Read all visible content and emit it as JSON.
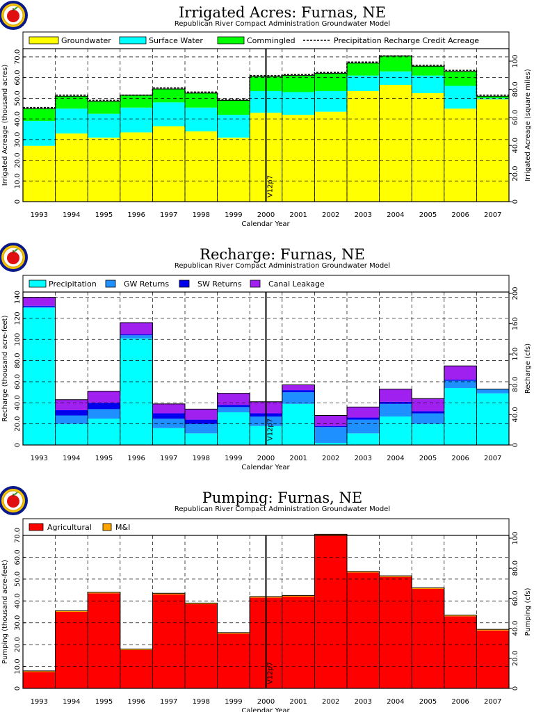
{
  "chart_data": [
    {
      "type": "bar",
      "stacked": true,
      "title": "Irrigated Acres: Furnas, NE",
      "subtitle": "Republican River Compact Administration Groundwater Model",
      "xlabel": "Calendar Year",
      "ylabel": "Irrigated Acreage (thousand acres)",
      "ylabel_right": "Irrigated Acreage (square miles)",
      "categories": [
        "1993",
        "1994",
        "1995",
        "1996",
        "1997",
        "1998",
        "1999",
        "2000",
        "2001",
        "2002",
        "2003",
        "2004",
        "2005",
        "2006",
        "2007"
      ],
      "ylim": [
        0,
        74
      ],
      "yticks": [
        "0",
        "10.0",
        "20.0",
        "30.0",
        "40.0",
        "50.0",
        "60.0",
        "70.0"
      ],
      "yticks_right": [
        "0",
        "20.0",
        "40.0",
        "60.0",
        "80.0",
        "100"
      ],
      "series": [
        {
          "name": "Groundwater",
          "color": "#ffff00",
          "values": [
            27,
            33,
            31,
            33.5,
            36.5,
            34,
            31,
            43,
            42,
            43.5,
            53.5,
            56.5,
            52.5,
            45,
            49.5
          ]
        },
        {
          "name": "Surface Water",
          "color": "#00ffff",
          "values": [
            12,
            12,
            11.5,
            12,
            11.5,
            11.5,
            11,
            10.5,
            11,
            10,
            7.5,
            6.5,
            8.5,
            11,
            0.5
          ]
        },
        {
          "name": "Commingled",
          "color": "#00ff00",
          "values": [
            6,
            6,
            6,
            6,
            6.5,
            7,
            7,
            7,
            8,
            8.5,
            6,
            7.5,
            4.5,
            7,
            1
          ]
        }
      ],
      "line_series": {
        "name": "Precipitation Recharge Credit Acreage",
        "values": [
          45.5,
          51.5,
          49,
          51.5,
          55,
          53,
          49.5,
          61,
          61.5,
          62.5,
          67.5,
          70.5,
          66,
          63.5,
          51.5
        ]
      },
      "annotation": "V12p7",
      "grid": true,
      "legend": "top"
    },
    {
      "type": "bar",
      "stacked": true,
      "title": "Recharge: Furnas, NE",
      "subtitle": "Republican River Compact Administration Groundwater Model",
      "xlabel": "Calendar Year",
      "ylabel": "Recharge (thousand acre-feet)",
      "ylabel_right": "Recharge (cfs)",
      "categories": [
        "1993",
        "1994",
        "1995",
        "1996",
        "1997",
        "1998",
        "1999",
        "2000",
        "2001",
        "2002",
        "2003",
        "2004",
        "2005",
        "2006",
        "2007"
      ],
      "ylim": [
        0,
        145
      ],
      "yticks": [
        "0",
        "20.0",
        "40.0",
        "60.0",
        "80.0",
        "100",
        "120",
        "140"
      ],
      "yticks_right": [
        "0",
        "40.0",
        "80.0",
        "120",
        "160",
        "200"
      ],
      "series": [
        {
          "name": "Precipitation",
          "color": "#00ffff",
          "values": [
            130,
            20,
            25,
            101,
            16,
            11,
            31,
            18,
            39,
            2,
            11,
            27,
            20,
            54,
            49
          ]
        },
        {
          "name": "GW Returns",
          "color": "#1e90ff",
          "values": [
            1,
            8,
            9,
            3,
            9,
            9,
            5,
            9,
            11,
            15,
            13,
            12,
            10,
            7,
            4
          ]
        },
        {
          "name": "SW Returns",
          "color": "#0000ee",
          "values": [
            1,
            5,
            6,
            1,
            5,
            4,
            2,
            3,
            2,
            1,
            2,
            2,
            2,
            1,
            0
          ]
        },
        {
          "name": "Canal Leakage",
          "color": "#a020f0",
          "values": [
            8,
            10,
            11,
            11,
            9,
            10,
            11,
            11,
            5,
            10,
            10,
            12,
            12,
            13,
            0
          ]
        }
      ],
      "annotation": "V12p7",
      "grid": true,
      "legend": "top"
    },
    {
      "type": "bar",
      "stacked": true,
      "title": "Pumping: Furnas, NE",
      "subtitle": "Republican River Compact Administration Groundwater Model",
      "xlabel": "Calendar Year",
      "ylabel": "Pumping (thousand acre-feet)",
      "ylabel_right": "Pumping (cfs)",
      "categories": [
        "1993",
        "1994",
        "1995",
        "1996",
        "1997",
        "1998",
        "1999",
        "2000",
        "2001",
        "2002",
        "2003",
        "2004",
        "2005",
        "2006",
        "2007"
      ],
      "ylim": [
        0,
        70
      ],
      "yticks": [
        "0",
        "10.0",
        "20.0",
        "30.0",
        "40.0",
        "50.0",
        "60.0",
        "70.0"
      ],
      "yticks_right": [
        "0",
        "20.0",
        "40.0",
        "60.0",
        "80.0",
        "100"
      ],
      "series": [
        {
          "name": "Agricultural",
          "color": "#ff0000",
          "values": [
            7.5,
            35,
            43.5,
            17.5,
            43,
            38.5,
            25,
            41.5,
            42,
            70,
            53,
            51,
            45.5,
            33,
            26.5
          ]
        },
        {
          "name": "M&I",
          "color": "#ffa500",
          "values": [
            0.5,
            0.5,
            0.5,
            0.5,
            0.5,
            0.5,
            0.5,
            0.5,
            0.5,
            0.5,
            0.5,
            0.5,
            0.5,
            0.5,
            0.5
          ]
        }
      ],
      "annotation": "V12p7",
      "grid": true,
      "legend": "top"
    }
  ]
}
